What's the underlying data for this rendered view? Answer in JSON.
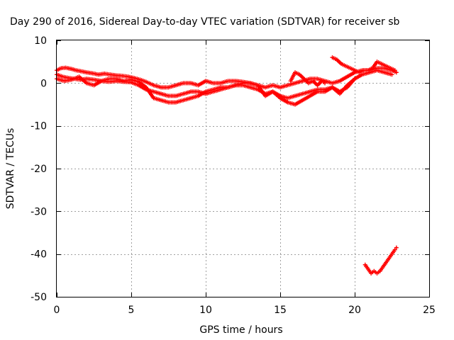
{
  "chart_data": {
    "type": "scatter",
    "title": "Day 290 of 2016, Sidereal Day-to-day VTEC variation (SDTVAR) for receiver sb",
    "xlabel": "GPS time / hours",
    "ylabel": "SDTVAR / TECUs",
    "xlim": [
      0,
      25
    ],
    "ylim": [
      -50,
      10
    ],
    "xticks": [
      0,
      5,
      10,
      15,
      20,
      25
    ],
    "yticks": [
      -50,
      -40,
      -30,
      -20,
      -10,
      0,
      10
    ],
    "grid": true,
    "marker": "plus",
    "color": "#ff0000",
    "series": [
      {
        "x": [
          0.0,
          0.3,
          0.6,
          1.0,
          1.3,
          1.6,
          2.0,
          2.4,
          2.8,
          3.2,
          3.6,
          4.0,
          4.4,
          4.8,
          5.2,
          5.6,
          6.0,
          6.5,
          7.0,
          7.5,
          8.0,
          8.5,
          9.0,
          9.5,
          10.0,
          10.5,
          11.0,
          11.5,
          12.0,
          12.5,
          13.0,
          13.5,
          14.0,
          14.5,
          15.0,
          15.5,
          16.0,
          16.5,
          17.0,
          17.5,
          18.0,
          18.5,
          19.0,
          19.5,
          20.0,
          20.5,
          21.0,
          21.5,
          22.0,
          22.5,
          22.8
        ],
        "y": [
          3.0,
          3.5,
          3.6,
          3.3,
          3.0,
          2.8,
          2.5,
          2.3,
          2.0,
          2.2,
          2.0,
          1.8,
          1.7,
          1.5,
          1.2,
          0.8,
          0.3,
          -0.5,
          -1.0,
          -1.0,
          -0.5,
          0.0,
          0.0,
          -0.5,
          0.5,
          0.0,
          0.0,
          0.5,
          0.5,
          0.3,
          0.0,
          -0.5,
          -1.0,
          -0.5,
          -1.0,
          -0.5,
          0.0,
          0.5,
          1.0,
          1.0,
          0.5,
          0.0,
          0.5,
          1.5,
          2.5,
          3.0,
          3.0,
          3.5,
          3.5,
          3.0,
          2.5
        ]
      },
      {
        "x": [
          0.0,
          0.4,
          0.8,
          1.2,
          1.6,
          2.0,
          2.5,
          3.0,
          3.5,
          4.0,
          4.5,
          5.0,
          5.5,
          6.0,
          6.5,
          7.0,
          7.5,
          8.0,
          8.5,
          9.0,
          9.5,
          10.0,
          10.5,
          11.0,
          11.5,
          12.0,
          12.5,
          13.0,
          13.5,
          14.0,
          14.5,
          15.0,
          15.5,
          16.0,
          16.5,
          17.0,
          17.5,
          18.0,
          18.5,
          19.0,
          19.5,
          20.0,
          20.5,
          21.0,
          21.5,
          22.0,
          22.5
        ],
        "y": [
          2.0,
          1.5,
          1.2,
          1.0,
          0.8,
          1.0,
          0.8,
          0.5,
          0.3,
          0.5,
          0.3,
          0.2,
          -0.5,
          -1.5,
          -2.0,
          -2.5,
          -3.0,
          -3.0,
          -2.5,
          -2.0,
          -2.0,
          -2.5,
          -2.0,
          -1.5,
          -1.0,
          -0.5,
          -0.5,
          -1.0,
          -1.5,
          -2.5,
          -2.0,
          -3.0,
          -3.5,
          -3.0,
          -2.5,
          -2.0,
          -1.5,
          -1.5,
          -1.0,
          -2.0,
          -1.0,
          1.0,
          2.0,
          2.5,
          3.0,
          2.5,
          2.0
        ]
      },
      {
        "x": [
          0.0,
          0.5,
          1.0,
          1.5,
          2.0,
          2.5,
          3.0,
          3.5,
          4.0,
          4.5,
          5.0,
          5.5,
          6.0,
          6.5,
          7.0,
          7.5,
          8.0,
          8.5,
          9.0,
          9.5,
          10.0,
          10.5,
          11.0,
          11.5,
          12.0,
          12.5,
          13.0,
          13.5,
          14.0,
          14.5,
          15.0,
          15.5,
          16.0,
          16.5,
          17.0,
          17.5,
          18.0,
          18.5,
          19.0,
          19.5,
          20.0
        ],
        "y": [
          1.0,
          0.5,
          0.8,
          1.5,
          0.0,
          -0.5,
          0.5,
          1.0,
          1.0,
          0.5,
          0.8,
          0.3,
          -1.0,
          -3.5,
          -4.0,
          -4.5,
          -4.5,
          -4.0,
          -3.5,
          -3.0,
          -2.0,
          -1.5,
          -1.0,
          -1.0,
          -0.5,
          0.0,
          0.0,
          -0.5,
          -3.0,
          -2.0,
          -3.5,
          -4.5,
          -5.0,
          -4.0,
          -3.0,
          -2.0,
          -2.0,
          -1.0,
          -2.5,
          -0.5,
          1.0
        ]
      },
      {
        "x": [
          15.7,
          16.0,
          16.3,
          16.6,
          16.9,
          17.2,
          17.5,
          17.8,
          18.0
        ],
        "y": [
          0.5,
          2.5,
          2.0,
          1.0,
          0.0,
          0.5,
          -0.5,
          0.5,
          0.0
        ]
      },
      {
        "x": [
          18.5,
          18.8,
          19.1,
          19.4,
          19.7,
          20.0,
          20.3,
          20.6,
          20.9,
          21.2,
          21.5,
          21.8,
          22.1,
          22.4,
          22.7
        ],
        "y": [
          6.0,
          5.5,
          4.5,
          4.0,
          3.5,
          3.0,
          2.5,
          3.0,
          3.0,
          3.5,
          5.0,
          4.5,
          4.0,
          3.5,
          3.0
        ]
      },
      {
        "x": [
          20.7,
          20.9,
          21.1,
          21.3,
          21.5,
          21.7,
          21.9,
          22.1,
          22.3,
          22.5,
          22.7,
          22.8
        ],
        "y": [
          -42.5,
          -43.5,
          -44.5,
          -44.0,
          -44.5,
          -44.0,
          -43.0,
          -42.0,
          -41.0,
          -40.0,
          -39.0,
          -38.5
        ]
      }
    ]
  }
}
